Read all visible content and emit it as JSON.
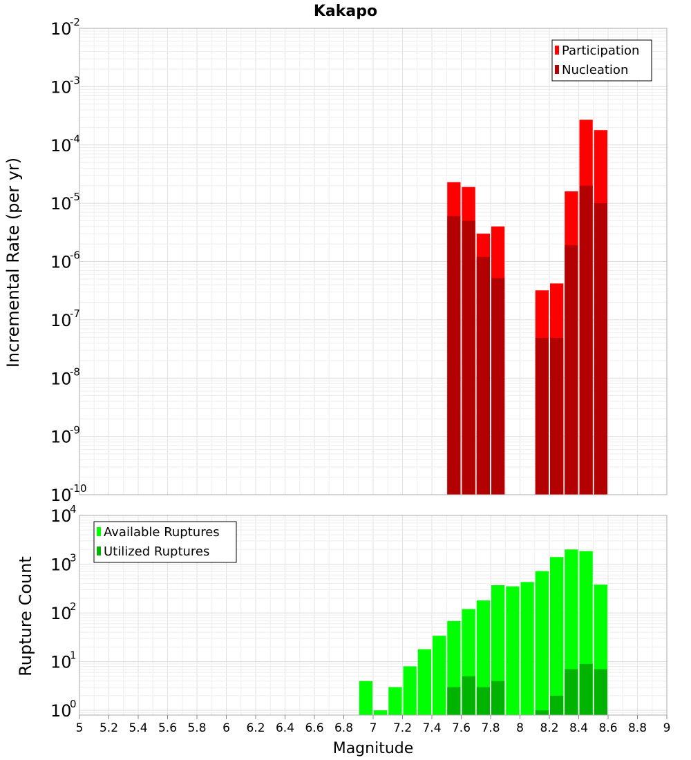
{
  "chart_data": [
    {
      "type": "bar",
      "title": "Kakapo",
      "xlabel": "",
      "ylabel": "Incremental Rate (per yr)",
      "y_scale": "log",
      "xlim": [
        5,
        9
      ],
      "ylim": [
        1e-10,
        0.01
      ],
      "y_ticks": [
        {
          "base": "10",
          "exp": "-10"
        },
        {
          "base": "10",
          "exp": "-9"
        },
        {
          "base": "10",
          "exp": "-8"
        },
        {
          "base": "10",
          "exp": "-7"
        },
        {
          "base": "10",
          "exp": "-6"
        },
        {
          "base": "10",
          "exp": "-5"
        },
        {
          "base": "10",
          "exp": "-4"
        },
        {
          "base": "10",
          "exp": "-3"
        },
        {
          "base": "10",
          "exp": "-2"
        }
      ],
      "bin_width": 0.1,
      "grid": true,
      "legend_position": "top-right",
      "x": [
        7.55,
        7.65,
        7.75,
        7.85,
        8.15,
        8.25,
        8.35,
        8.45,
        8.55
      ],
      "series": [
        {
          "name": "Participation",
          "color": "#ff0000",
          "values": [
            2.3e-05,
            1.9e-05,
            3e-06,
            4e-06,
            3.2e-07,
            4.2e-07,
            1.6e-05,
            0.00027,
            0.00018
          ]
        },
        {
          "name": "Nucleation",
          "color": "#b30000",
          "values": [
            6e-06,
            5e-06,
            1.2e-06,
            5.2e-07,
            4.9e-08,
            4.9e-08,
            1.9e-06,
            2e-05,
            1e-05
          ]
        }
      ]
    },
    {
      "type": "bar",
      "xlabel": "Magnitude",
      "ylabel": "Rupture Count",
      "y_scale": "log",
      "xlim": [
        5,
        9
      ],
      "ylim": [
        0.8,
        10000
      ],
      "x_ticks": [
        "5",
        "5.2",
        "5.4",
        "5.6",
        "5.8",
        "6",
        "6.2",
        "6.4",
        "6.6",
        "6.8",
        "7",
        "7.2",
        "7.4",
        "7.6",
        "7.8",
        "8",
        "8.2",
        "8.4",
        "8.6",
        "8.8",
        "9"
      ],
      "y_ticks": [
        {
          "base": "10",
          "exp": "0"
        },
        {
          "base": "10",
          "exp": "1"
        },
        {
          "base": "10",
          "exp": "2"
        },
        {
          "base": "10",
          "exp": "3"
        },
        {
          "base": "10",
          "exp": "4"
        }
      ],
      "bin_width": 0.1,
      "grid": true,
      "legend_position": "top-left",
      "series": [
        {
          "name": "Available Ruptures",
          "color": "#00ff00",
          "x": [
            6.95,
            7.05,
            7.15,
            7.25,
            7.35,
            7.45,
            7.55,
            7.65,
            7.75,
            7.85,
            7.95,
            8.05,
            8.15,
            8.25,
            8.35,
            8.45,
            8.55
          ],
          "values": [
            4,
            1,
            3,
            8,
            18,
            34,
            68,
            120,
            180,
            370,
            350,
            430,
            720,
            1400,
            2000,
            1850,
            380
          ]
        },
        {
          "name": "Utilized Ruptures",
          "color": "#00b300",
          "x": [
            7.55,
            7.65,
            7.75,
            7.85,
            8.15,
            8.25,
            8.35,
            8.45,
            8.55
          ],
          "values": [
            3,
            5,
            3,
            4,
            1,
            2,
            7,
            9,
            7
          ]
        }
      ]
    }
  ]
}
